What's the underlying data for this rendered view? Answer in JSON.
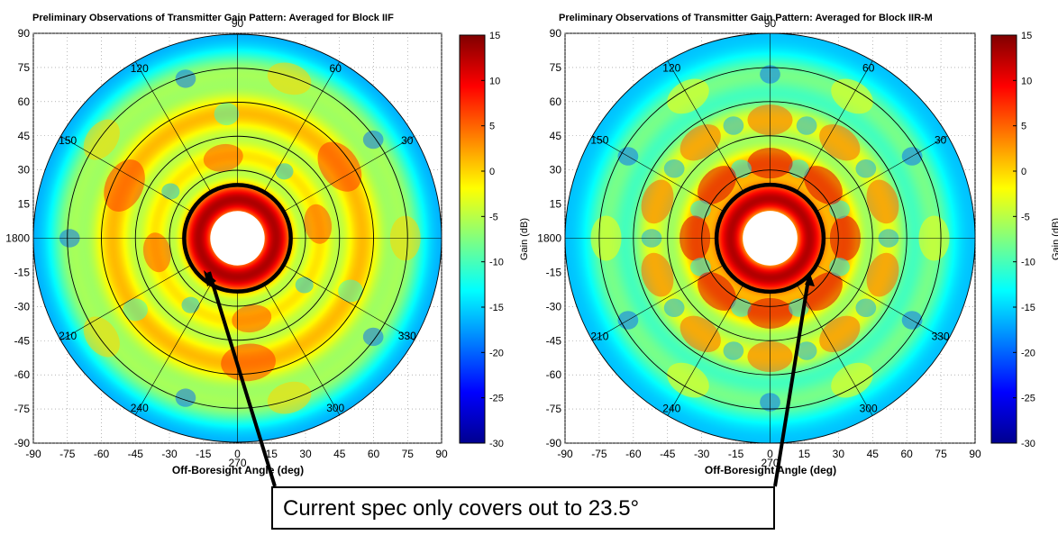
{
  "callout": {
    "text": "Current spec only covers out to 23.5°"
  },
  "colorbar": {
    "label": "Gain (dB)",
    "min": -30,
    "max": 15,
    "ticks": [
      15,
      10,
      5,
      0,
      -5,
      -10,
      -15,
      -20,
      -25,
      -30
    ]
  },
  "colors": {
    "colormap": [
      "#00008f",
      "#0000ff",
      "#0080ff",
      "#00ffff",
      "#80ff80",
      "#ffff00",
      "#ff8000",
      "#ff0000",
      "#800000"
    ],
    "ring": "#000000"
  },
  "chart_data": [
    {
      "type": "heatmap",
      "title": "Preliminary Observations of Transmitter Gain Pattern: Averaged for Block IIF",
      "xlabel": "Off-Boresight Angle (deg)",
      "ylabel": "",
      "xlim": [
        -90,
        90
      ],
      "ylim": [
        -90,
        90
      ],
      "xticks": [
        -90,
        -75,
        -60,
        -45,
        -30,
        -15,
        0,
        15,
        30,
        45,
        60,
        75,
        90
      ],
      "yticks": [
        90,
        75,
        60,
        45,
        30,
        15,
        0,
        -15,
        -30,
        -45,
        -60,
        -75,
        -90
      ],
      "ytick_zero_label": "1800",
      "angle_labels": [
        {
          "deg": 90,
          "text": "90"
        },
        {
          "deg": 60,
          "text": "60"
        },
        {
          "deg": 120,
          "text": "120"
        },
        {
          "deg": 30,
          "text": "30"
        },
        {
          "deg": 150,
          "text": "150"
        },
        {
          "deg": 210,
          "text": "210"
        },
        {
          "deg": 330,
          "text": "330"
        },
        {
          "deg": 240,
          "text": "240"
        },
        {
          "deg": 300,
          "text": "300"
        },
        {
          "deg": 270,
          "text": "270"
        }
      ],
      "rings_deg": [
        30,
        45,
        60,
        75,
        90
      ],
      "spec_radius_deg": 23.5,
      "inner_hole_deg": 12,
      "bands": [
        {
          "r_deg": 17,
          "width": 9,
          "gain": 13,
          "variation": 0,
          "lobes": 0,
          "phase": 0
        },
        {
          "r_deg": 36,
          "width": 8,
          "gain": -2,
          "variation": 8,
          "lobes": 4,
          "phase": 10
        },
        {
          "r_deg": 55,
          "width": 11,
          "gain": 1,
          "variation": 6,
          "lobes": 3,
          "phase": 35
        },
        {
          "r_deg": 74,
          "width": 9,
          "gain": -7,
          "variation": 7,
          "lobes": 5,
          "phase": 0
        }
      ],
      "base_gain": -17
    },
    {
      "type": "heatmap",
      "title": "Preliminary Observations of Transmitter Gain Pattern: Averaged for Block IIR-M",
      "xlabel": "Off-Boresight Angle (deg)",
      "ylabel": "",
      "xlim": [
        -90,
        90
      ],
      "ylim": [
        -90,
        90
      ],
      "xticks": [
        -90,
        -75,
        -60,
        -45,
        -30,
        -15,
        0,
        15,
        30,
        45,
        60,
        75,
        90
      ],
      "yticks": [
        90,
        75,
        60,
        45,
        30,
        15,
        0,
        -15,
        -30,
        -45,
        -60,
        -75,
        -90
      ],
      "ytick_zero_label": "1800",
      "angle_labels": [
        {
          "deg": 90,
          "text": "90"
        },
        {
          "deg": 60,
          "text": "60"
        },
        {
          "deg": 120,
          "text": "120"
        },
        {
          "deg": 30,
          "text": "30"
        },
        {
          "deg": 150,
          "text": "150"
        },
        {
          "deg": 210,
          "text": "210"
        },
        {
          "deg": 330,
          "text": "330"
        },
        {
          "deg": 240,
          "text": "240"
        },
        {
          "deg": 300,
          "text": "300"
        },
        {
          "deg": 270,
          "text": "270"
        }
      ],
      "rings_deg": [
        30,
        45,
        60,
        75,
        90
      ],
      "spec_radius_deg": 23.5,
      "inner_hole_deg": 12,
      "bands": [
        {
          "r_deg": 17,
          "width": 8,
          "gain": 12,
          "variation": 0,
          "lobes": 0,
          "phase": 0
        },
        {
          "r_deg": 33,
          "width": 9,
          "gain": 2,
          "variation": 9,
          "lobes": 8,
          "phase": 0
        },
        {
          "r_deg": 52,
          "width": 9,
          "gain": -3,
          "variation": 8,
          "lobes": 10,
          "phase": 18
        },
        {
          "r_deg": 72,
          "width": 9,
          "gain": -8,
          "variation": 6,
          "lobes": 6,
          "phase": 0
        }
      ],
      "base_gain": -16
    }
  ]
}
